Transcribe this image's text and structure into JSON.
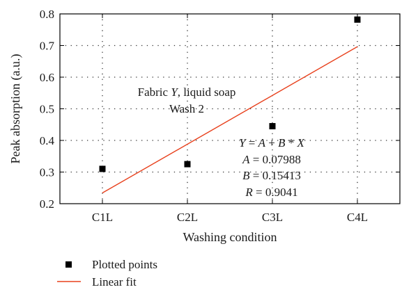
{
  "chart_data": {
    "type": "scatter",
    "title": "",
    "xlabel": "Washing condition",
    "ylabel": "Peak absorption (a.u.)",
    "categories": [
      "C1L",
      "C2L",
      "C3L",
      "C4L"
    ],
    "x": [
      1,
      2,
      3,
      4
    ],
    "ylim": [
      0.2,
      0.8
    ],
    "yticks": [
      "0.2",
      "0.3",
      "0.4",
      "0.5",
      "0.6",
      "0.7",
      "0.8"
    ],
    "grid": true,
    "series": [
      {
        "name": "Plotted points",
        "kind": "scatter",
        "marker": "square",
        "color": "#000000",
        "values": [
          0.31,
          0.325,
          0.445,
          0.782
        ]
      },
      {
        "name": "Linear fit",
        "kind": "line",
        "color": "#e8401c",
        "intercept": 0.07988,
        "slope": 0.15413,
        "x_range": [
          1,
          4
        ]
      }
    ],
    "annotations": {
      "sample_line1": "Fabric Y, liquid soap",
      "sample_line2": "Wash 2",
      "equation": "Y = A + B * X",
      "A": "A = 0.07988",
      "B": "B = 0.15413",
      "R": "R = 0.9041"
    },
    "legend_position": "bottom-left"
  }
}
